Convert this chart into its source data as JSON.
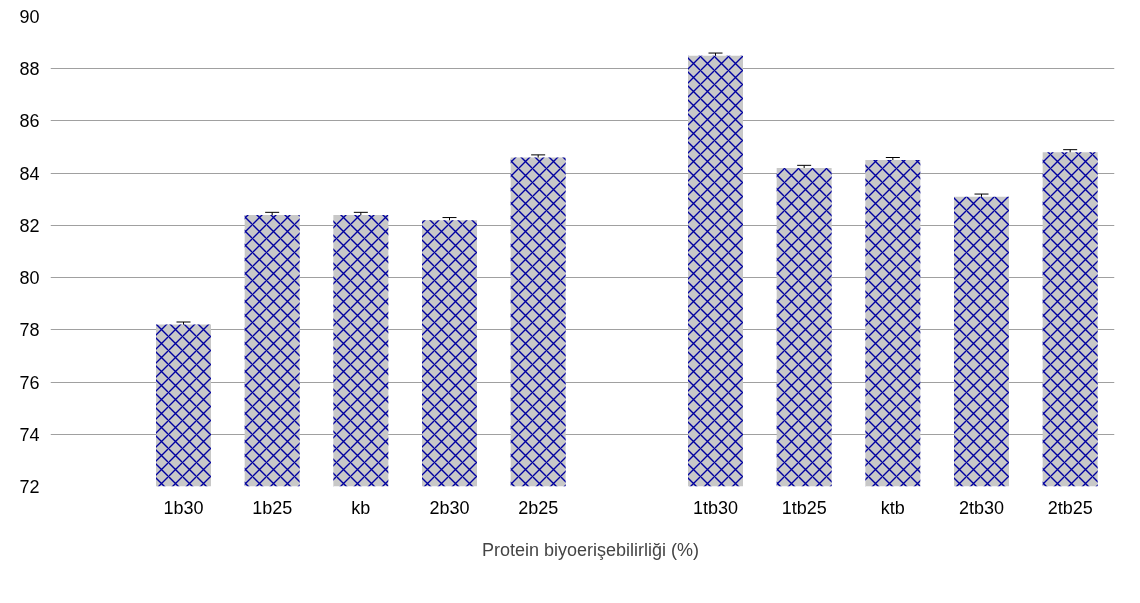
{
  "chart_data": {
    "type": "bar",
    "categories": [
      null,
      "1b30",
      "1b25",
      "kb",
      "2b30",
      "2b25",
      null,
      "1tb30",
      "1tb25",
      "ktb",
      "2tb30",
      "2tb25"
    ],
    "series": [
      {
        "name": "Protein biyoerişebilirliği (%)",
        "color": "#c8c8c8",
        "values": [
          null,
          78.2,
          82.4,
          82.4,
          82.2,
          84.6,
          null,
          88.5,
          84.2,
          84.5,
          83.1,
          84.8
        ],
        "errors": [
          null,
          0.1,
          0.1,
          0.1,
          0.1,
          0.1,
          null,
          0.1,
          0.1,
          0.1,
          0.1,
          0.1
        ]
      }
    ],
    "ylim": [
      72,
      90
    ],
    "yticks": [
      72,
      74,
      76,
      78,
      80,
      82,
      84,
      86,
      88,
      90
    ],
    "grid": "y",
    "legend": "bottom"
  }
}
